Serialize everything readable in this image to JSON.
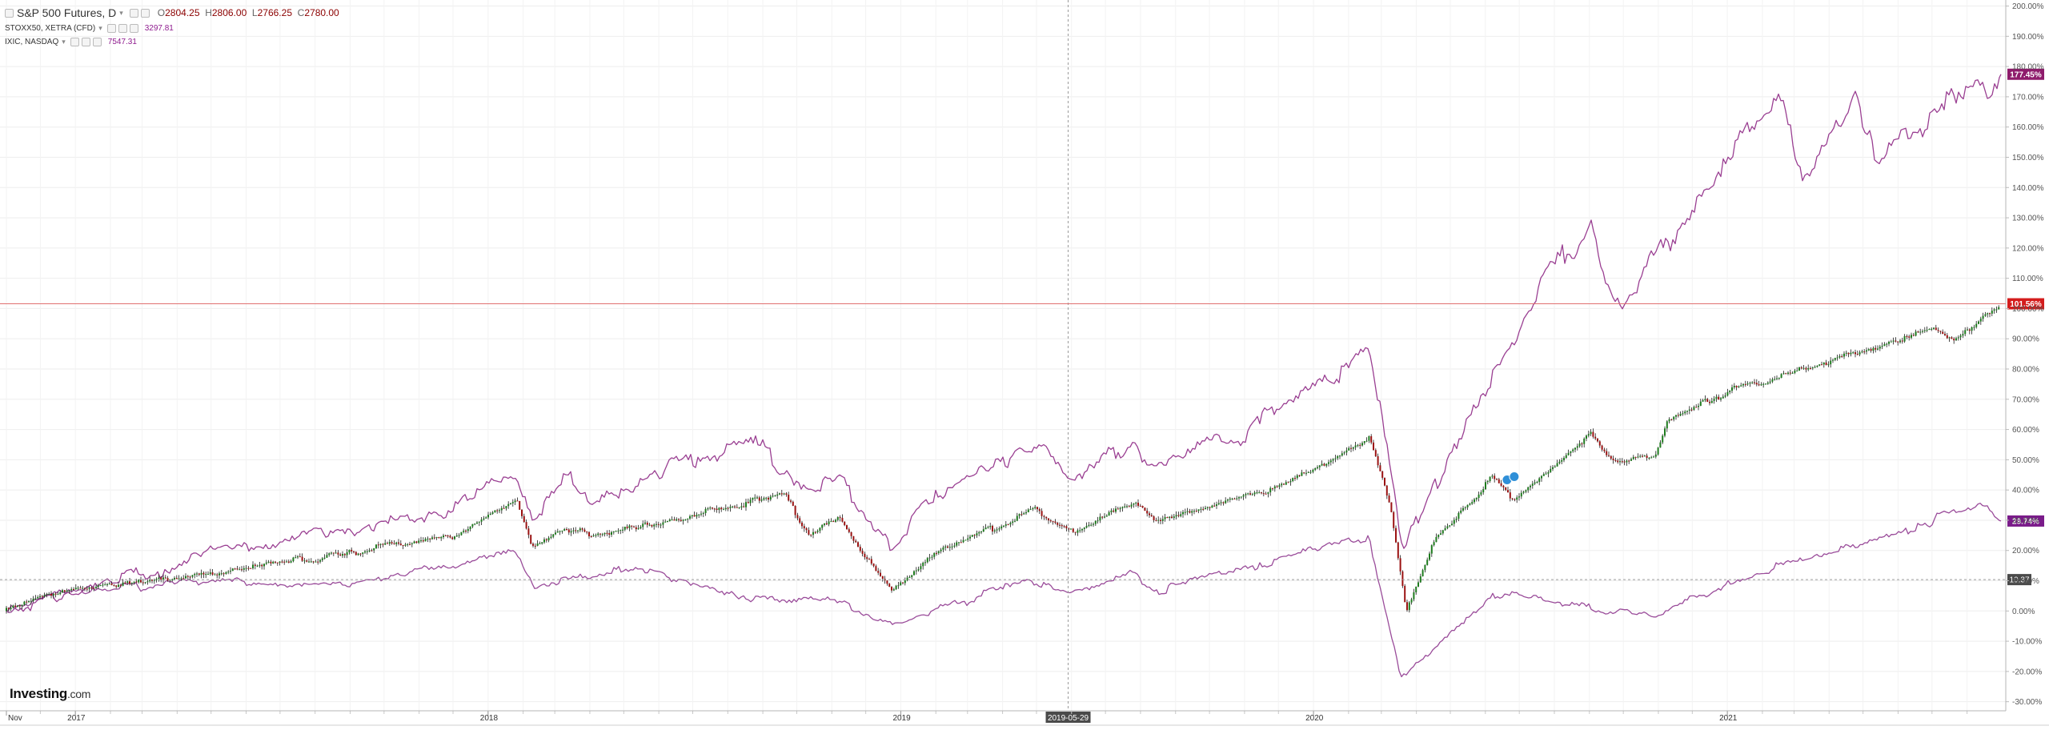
{
  "legend": {
    "main": {
      "title": "S&P 500 Futures, D",
      "o_key": "O",
      "o": "2804.25",
      "h_key": "H",
      "h": "2806.00",
      "l_key": "L",
      "l": "2766.25",
      "c_key": "C",
      "c": "2780.00"
    },
    "compare1": {
      "title": "STOXX50, XETRA (CFD)",
      "value": "3297.81"
    },
    "compare2": {
      "title": "IXIC, NASDAQ",
      "value": "7547.31"
    }
  },
  "logo": {
    "brand": "Investing",
    "suffix": ".com"
  },
  "crosshair": {
    "date_label": "2019-05-29",
    "value_label": "10.37",
    "value": 10.37
  },
  "price_line": {
    "label": "101.56%",
    "value": 101.56
  },
  "end_labels": [
    {
      "label": "177.45%",
      "value": 177.45,
      "color": "#8e1b6b"
    },
    {
      "label": "29.74%",
      "value": 29.74,
      "color": "#7a1b8a"
    }
  ],
  "chart_data": {
    "type": "line",
    "title": "",
    "xlabel": "",
    "ylabel": "",
    "x_ticks": [
      "Nov",
      "2017",
      "2018",
      "2019",
      "2020",
      "2021"
    ],
    "y_ticks": [
      "200.00%",
      "190.00%",
      "180.00%",
      "170.00%",
      "160.00%",
      "150.00%",
      "140.00%",
      "130.00%",
      "120.00%",
      "110.00%",
      "100.00%",
      "90.00%",
      "80.00%",
      "70.00%",
      "60.00%",
      "50.00%",
      "40.00%",
      "30.00%",
      "20.00%",
      "10.00%",
      "0.00%",
      "-10.00%",
      "-20.00%",
      "-30.00%"
    ],
    "ylim": [
      -33,
      202
    ],
    "grid": true,
    "series": [
      {
        "name": "S&P 500 Futures",
        "style": "candlestick",
        "color": "#1e7b1e",
        "x": [
          "2016-11-01",
          "2016-12-15",
          "2017-03-01",
          "2017-06-01",
          "2017-09-01",
          "2017-12-01",
          "2018-01-26",
          "2018-02-09",
          "2018-03-09",
          "2018-04-02",
          "2018-06-01",
          "2018-08-01",
          "2018-09-20",
          "2018-10-12",
          "2018-11-08",
          "2018-12-24",
          "2019-02-01",
          "2019-04-30",
          "2019-06-03",
          "2019-07-26",
          "2019-08-15",
          "2019-10-01",
          "2019-11-15",
          "2020-01-15",
          "2020-02-19",
          "2020-03-09",
          "2020-03-23",
          "2020-04-15",
          "2020-06-08",
          "2020-06-26",
          "2020-09-02",
          "2020-09-23",
          "2020-10-30",
          "2020-11-09",
          "2021-01-01",
          "2021-03-01",
          "2021-05-01",
          "2021-07-01",
          "2021-07-20",
          "2021-08-31"
        ],
        "values": [
          0,
          6,
          10,
          14,
          19,
          25,
          37,
          21,
          28,
          24,
          29,
          35,
          38,
          25,
          30,
          6,
          20,
          33,
          27,
          36,
          29,
          35,
          39,
          50,
          57,
          35,
          0,
          22,
          44,
          37,
          59,
          49,
          51,
          62,
          73,
          79,
          86,
          93,
          89,
          101.56
        ]
      },
      {
        "name": "STOXX50, XETRA (CFD)",
        "color": "#9a4c9a",
        "x": [
          "2016-11-01",
          "2016-12-15",
          "2017-05-01",
          "2017-09-01",
          "2018-01-23",
          "2018-02-09",
          "2018-05-15",
          "2018-08-15",
          "2018-10-25",
          "2018-12-27",
          "2019-04-20",
          "2019-05-31",
          "2019-07-26",
          "2019-08-15",
          "2019-11-15",
          "2020-02-19",
          "2020-03-18",
          "2020-06-08",
          "2020-10-30",
          "2021-01-01",
          "2021-05-01",
          "2021-08-16",
          "2021-08-31"
        ],
        "values": [
          0,
          6,
          10,
          8,
          20,
          9,
          14,
          5,
          4,
          -4,
          10,
          6,
          13,
          7,
          16,
          25,
          -22,
          6,
          -2,
          10,
          22,
          35,
          29.74
        ]
      },
      {
        "name": "IXIC, NASDAQ",
        "color": "#9a3f92",
        "x": [
          "2016-11-01",
          "2016-12-15",
          "2017-03-01",
          "2017-06-01",
          "2017-09-01",
          "2017-12-01",
          "2018-01-26",
          "2018-02-09",
          "2018-03-13",
          "2018-04-02",
          "2018-06-20",
          "2018-08-29",
          "2018-10-12",
          "2018-11-08",
          "2018-12-24",
          "2019-02-01",
          "2019-05-03",
          "2019-06-03",
          "2019-07-26",
          "2019-08-15",
          "2019-11-15",
          "2020-02-19",
          "2020-03-20",
          "2020-06-08",
          "2020-09-02",
          "2020-09-23",
          "2020-11-05",
          "2021-02-12",
          "2021-03-08",
          "2021-04-26",
          "2021-05-12",
          "2021-06-30",
          "2021-08-31"
        ],
        "values": [
          0,
          3,
          12,
          22,
          27,
          33,
          44,
          30,
          45,
          35,
          50,
          55,
          40,
          45,
          20,
          40,
          55,
          43,
          56,
          48,
          62,
          87,
          20,
          80,
          130,
          102,
          120,
          170,
          142,
          170,
          148,
          165,
          177.45
        ]
      }
    ]
  }
}
